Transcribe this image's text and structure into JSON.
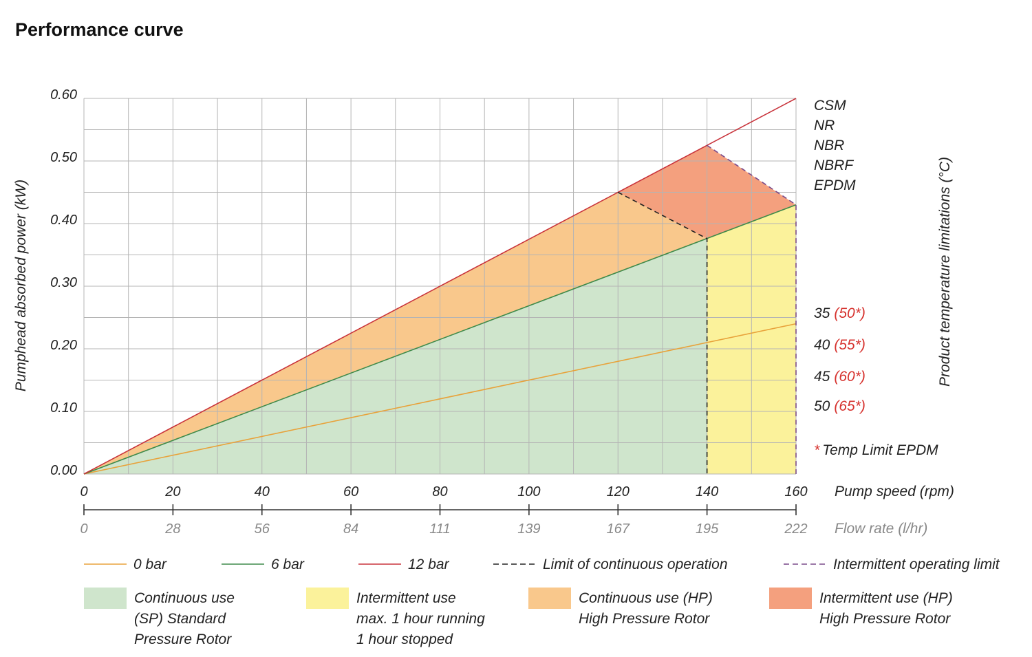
{
  "page_title": "Performance curve",
  "colors": {
    "line_0bar": "#e8a23a",
    "line_6bar": "#3f8a4a",
    "line_12bar": "#c8323a",
    "fill_continuous_sp": "#cfe5cc",
    "fill_intermittent": "#fbf29b",
    "fill_continuous_hp": "#f9c88c",
    "fill_intermittent_hp": "#f4a07e",
    "grid": "#b4b4b4",
    "limit_continuous": "#222222",
    "limit_intermittent": "#7a4a8a",
    "note_red": "#d6322e"
  },
  "chart_data": {
    "type": "line",
    "title": "Performance curve",
    "ylabel": "Pumphead absorbed power (kW)",
    "xlabel": "Pump speed (rpm)",
    "x2label": "Flow rate (l/hr)",
    "right_label": "Product temperature limitations (°C)",
    "xlim": [
      0,
      160
    ],
    "ylim": [
      0,
      0.6
    ],
    "x_ticks": [
      "0",
      "20",
      "40",
      "60",
      "80",
      "100",
      "120",
      "140",
      "160"
    ],
    "x2_ticks": [
      "0",
      "28",
      "56",
      "84",
      "111",
      "139",
      "167",
      "195",
      "222"
    ],
    "y_ticks": [
      "0.00",
      "0.10",
      "0.20",
      "0.30",
      "0.40",
      "0.50",
      "0.60"
    ],
    "grid": true,
    "series": [
      {
        "name": "0 bar",
        "x": [
          0,
          160
        ],
        "y": [
          0,
          0.24
        ]
      },
      {
        "name": "6 bar",
        "x": [
          0,
          160
        ],
        "y": [
          0,
          0.43
        ]
      },
      {
        "name": "12 bar",
        "x": [
          0,
          160
        ],
        "y": [
          0,
          0.6
        ]
      }
    ],
    "limits": [
      {
        "name": "Limit of continuous operation",
        "x": [
          120,
          140,
          140
        ],
        "y": [
          0.45,
          0.376,
          0
        ]
      },
      {
        "name": "Intermittent operating limit",
        "x": [
          140,
          160,
          160
        ],
        "y": [
          0.525,
          0.43,
          0
        ]
      }
    ],
    "regions": [
      {
        "name": "Continuous use (SP) Standard Pressure Rotor",
        "x": [
          0,
          140,
          140
        ],
        "y": [
          0,
          0.376,
          0
        ]
      },
      {
        "name": "Intermittent use max. 1 hour running 1 hour stopped",
        "x": [
          140,
          160,
          160,
          140
        ],
        "y": [
          0,
          0,
          0.43,
          0.376
        ]
      },
      {
        "name": "Continuous use (HP) High Pressure Rotor",
        "x": [
          0,
          120,
          140
        ],
        "y": [
          0,
          0.45,
          0.376
        ]
      },
      {
        "name": "Intermittent use (HP) High Pressure Rotor",
        "x": [
          120,
          140,
          160,
          140
        ],
        "y": [
          0.45,
          0.525,
          0.43,
          0.376
        ]
      }
    ],
    "materials": [
      "CSM",
      "NR",
      "NBR",
      "NBRF",
      "EPDM"
    ],
    "temperature_limits": [
      {
        "temp": "35",
        "epdm": "(50*)"
      },
      {
        "temp": "40",
        "epdm": "(55*)"
      },
      {
        "temp": "45",
        "epdm": "(60*)"
      },
      {
        "temp": "50",
        "epdm": "(65*)"
      }
    ],
    "footnote_star": "*",
    "footnote_text": "Temp Limit EPDM"
  },
  "legend": {
    "lines": [
      {
        "label": "0 bar",
        "color": "#e8a23a",
        "dash": ""
      },
      {
        "label": "6 bar",
        "color": "#3f8a4a",
        "dash": ""
      },
      {
        "label": "12 bar",
        "color": "#c8323a",
        "dash": ""
      },
      {
        "label": "Limit of continuous operation",
        "color": "#222222",
        "dash": "8,5"
      },
      {
        "label": "Intermittent operating limit",
        "color": "#7a4a8a",
        "dash": "8,5"
      }
    ],
    "areas": [
      {
        "color": "#cfe5cc",
        "lines": [
          "Continuous use",
          "(SP) Standard",
          "Pressure Rotor"
        ]
      },
      {
        "color": "#fbf29b",
        "lines": [
          "Intermittent use",
          "max. 1 hour running",
          "1 hour stopped"
        ]
      },
      {
        "color": "#f9c88c",
        "lines": [
          "Continuous use (HP)",
          "High Pressure Rotor"
        ]
      },
      {
        "color": "#f4a07e",
        "lines": [
          "Intermittent use (HP)",
          "High Pressure Rotor"
        ]
      }
    ]
  }
}
